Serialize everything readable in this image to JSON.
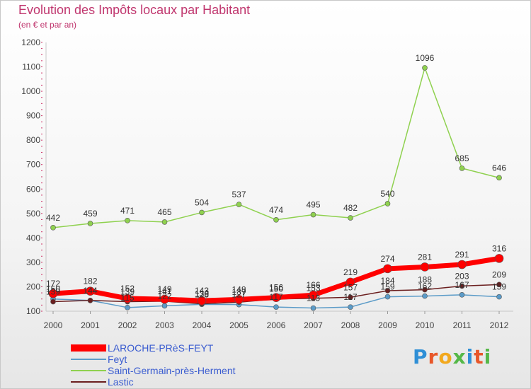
{
  "title": "Evolution des Impôts locaux par Habitant",
  "subtitle": "(en € et par an)",
  "brand": "Proxiti",
  "legend": [
    {
      "label": "LAROCHE-PRèS-FEYT",
      "color": "#ff0000"
    },
    {
      "label": "Feyt",
      "color": "#5b9bc8"
    },
    {
      "label": "Saint-Germain-près-Herment",
      "color": "#8fd14f"
    },
    {
      "label": "Lastic",
      "color": "#6b1f1f"
    }
  ],
  "chart_data": {
    "type": "line",
    "x": [
      2000,
      2001,
      2002,
      2003,
      2004,
      2005,
      2006,
      2007,
      2008,
      2009,
      2010,
      2011,
      2012
    ],
    "ylim": [
      100,
      1200
    ],
    "yticks": [
      100,
      200,
      300,
      400,
      500,
      600,
      700,
      800,
      900,
      1000,
      1100,
      1200
    ],
    "grid": false,
    "legend_position": "bottom-left",
    "series": [
      {
        "name": "LAROCHE-PRèS-FEYT",
        "color": "#ff0000",
        "values": [
          172,
          182,
          152,
          149,
          143,
          148,
          156,
          166,
          219,
          274,
          281,
          291,
          316
        ]
      },
      {
        "name": "Feyt",
        "color": "#5b9bc8",
        "values": [
          150,
          144,
          115,
          122,
          128,
          127,
          117,
          113,
          117,
          159,
          162,
          167,
          159
        ]
      },
      {
        "name": "Saint-Germain-près-Herment",
        "color": "#8fd14f",
        "values": [
          442,
          459,
          471,
          465,
          504,
          537,
          474,
          495,
          482,
          540,
          1096,
          685,
          646
        ]
      },
      {
        "name": "Lastic",
        "color": "#6b1f1f",
        "values": [
          139,
          144,
          139,
          141,
          130,
          137,
          150,
          153,
          157,
          184,
          188,
          203,
          209
        ]
      }
    ]
  }
}
